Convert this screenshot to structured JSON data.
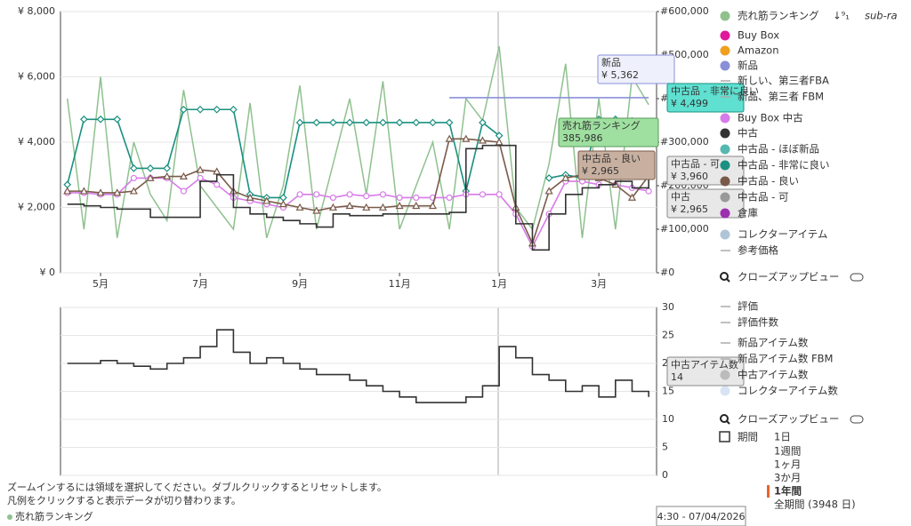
{
  "chart_data": [
    {
      "type": "line",
      "categories": [
        null,
        null,
        "5月",
        null,
        null,
        null,
        null,
        null,
        "7月",
        null,
        null,
        null,
        null,
        null,
        "9月",
        null,
        null,
        null,
        null,
        null,
        "11月",
        null,
        null,
        null,
        null,
        null,
        "1月",
        null,
        null,
        null,
        null,
        null,
        "3月",
        null,
        null,
        null
      ],
      "ylim": [
        0,
        8000
      ],
      "yticks": [
        {
          "value": 0,
          "label": "¥ 0"
        },
        {
          "value": 2000,
          "label": "¥ 2,000"
        },
        {
          "value": 4000,
          "label": "¥ 4,000"
        },
        {
          "value": 6000,
          "label": "¥ 6,000"
        },
        {
          "value": 8000,
          "label": "¥ 8,000"
        }
      ],
      "y2lim": [
        0,
        600000
      ],
      "y2ticks": [
        {
          "value": 0,
          "label": "#0"
        },
        {
          "value": 100000,
          "label": "#100,000"
        },
        {
          "value": 200000,
          "label": "#200,000"
        },
        {
          "value": 300000,
          "label": "#300,000"
        },
        {
          "value": 400000,
          "label": "#400,000"
        },
        {
          "value": 500000,
          "label": "#500,000"
        },
        {
          "value": 600000,
          "label": "#600,000"
        }
      ],
      "grid": true,
      "series": [
        {
          "color": "#8fc18f",
          "axis": "y2",
          "values": [
            400000,
            100000,
            450000,
            80000,
            300000,
            180000,
            120000,
            420000,
            200000,
            150000,
            100000,
            390000,
            80000,
            200000,
            430000,
            100000,
            250000,
            400000,
            180000,
            440000,
            100000,
            200000,
            300000,
            100000,
            400000,
            350000,
            520000,
            150000,
            100000,
            250000,
            480000,
            80000,
            400000,
            100000,
            450000,
            385986
          ]
        },
        {
          "color": "#8a8fd8",
          "values": [
            null,
            null,
            null,
            null,
            null,
            null,
            null,
            null,
            null,
            null,
            null,
            null,
            null,
            null,
            null,
            null,
            null,
            null,
            null,
            null,
            null,
            null,
            null,
            5362,
            5362,
            5362,
            5362,
            5362,
            5362,
            5362,
            5362,
            5362,
            5362,
            5362,
            5362,
            5362
          ]
        },
        {
          "color": "#1a9080",
          "marker": "diamond",
          "values": [
            2700,
            4700,
            4700,
            4700,
            3200,
            3200,
            3200,
            5000,
            5000,
            5000,
            5000,
            2400,
            2300,
            2300,
            4600,
            4600,
            4600,
            4600,
            4600,
            4600,
            4600,
            4600,
            4600,
            4600,
            2500,
            4600,
            4200,
            null,
            null,
            2900,
            3000,
            2900,
            4700,
            4700,
            4650,
            4499
          ]
        },
        {
          "color": "#d77be8",
          "marker": "circle",
          "values": [
            2450,
            2450,
            2400,
            2400,
            2900,
            2900,
            2900,
            2500,
            2900,
            2700,
            2300,
            2200,
            2100,
            2000,
            2400,
            2400,
            2300,
            2400,
            2350,
            2400,
            2300,
            2300,
            2300,
            2300,
            2400,
            2400,
            2400,
            1800,
            800,
            1800,
            2800,
            2800,
            2700,
            2700,
            2600,
            2500
          ]
        },
        {
          "color": "#7a5a4a",
          "marker": "triangle",
          "values": [
            2500,
            2500,
            2450,
            2450,
            2500,
            2900,
            2950,
            2950,
            3150,
            3100,
            2500,
            2300,
            2200,
            2100,
            2000,
            1900,
            2000,
            2050,
            2000,
            2000,
            2050,
            2050,
            2050,
            4100,
            4100,
            4050,
            4000,
            2000,
            900,
            2500,
            2900,
            3000,
            2900,
            2700,
            2300,
            2965
          ]
        },
        {
          "color": "#333333",
          "step": true,
          "values": [
            2100,
            2050,
            2000,
            1950,
            1950,
            1700,
            1700,
            1700,
            2800,
            3000,
            2000,
            1800,
            1700,
            1600,
            1500,
            1400,
            1800,
            1750,
            1750,
            1800,
            1800,
            1800,
            1800,
            1850,
            3800,
            3900,
            3900,
            1500,
            700,
            1800,
            2400,
            2600,
            2700,
            2800,
            2600,
            2965
          ]
        }
      ]
    },
    {
      "type": "line",
      "ylim": [
        0,
        30
      ],
      "yticks": [
        0,
        5,
        10,
        15,
        20,
        25,
        30
      ],
      "grid": true,
      "series": [
        {
          "color": "#333333",
          "step": true,
          "values": [
            20,
            20,
            20.5,
            20,
            19.5,
            19,
            20,
            21,
            23,
            26,
            22,
            20,
            21,
            20,
            19,
            18,
            18,
            17,
            16,
            15,
            14,
            13,
            13,
            13,
            14,
            16,
            23,
            21,
            18,
            17,
            15,
            16,
            14,
            17,
            15,
            14
          ]
        }
      ]
    }
  ],
  "legend": {
    "sort": "↓⁹₁",
    "sub": "sub-ra",
    "items": [
      {
        "label": "売れ筋ランキング",
        "color": "#8fc18f",
        "style": "dot"
      },
      {
        "label": "Buy Box",
        "color": "#e0199a",
        "style": "dot"
      },
      {
        "label": "Amazon",
        "color": "#f0a020",
        "style": "dot"
      },
      {
        "label": "新品",
        "color": "#8a8fd8",
        "style": "dot"
      },
      {
        "label": "新しい、第三者FBA",
        "color": "#aaaaaa",
        "style": "line"
      },
      {
        "label": "新品、第三者 FBM",
        "color": "#aaaaaa",
        "style": "line"
      },
      {
        "label": "Buy Box 中古",
        "color": "#d77be8",
        "style": "dot"
      },
      {
        "label": "中古",
        "color": "#333333",
        "style": "dot"
      },
      {
        "label": "中古品 - ほぼ新品",
        "color": "#55b8b0",
        "style": "dot"
      },
      {
        "label": "中古品 - 非常に良い",
        "color": "#1a9080",
        "style": "dot"
      },
      {
        "label": "中古品 - 良い",
        "color": "#7a5a4a",
        "style": "dot"
      },
      {
        "label": "中古品 - 可",
        "color": "#999999",
        "style": "dot"
      },
      {
        "label": "倉庫",
        "color": "#9b2fb0",
        "style": "dot"
      },
      {
        "label": "コレクターアイテム",
        "color": "#b0c4d8",
        "style": "dot"
      },
      {
        "label": "参考価格",
        "color": "#aaaaaa",
        "style": "line"
      }
    ]
  },
  "closeup": "クローズアップビュー",
  "legend2": [
    {
      "label": "評価",
      "color": "#aaaaaa",
      "style": "line"
    },
    {
      "label": "評価件数",
      "color": "#aaaaaa",
      "style": "line"
    },
    {
      "label": "新品アイテム数",
      "color": "#aaaaaa",
      "style": "line"
    },
    {
      "label": "新品アイテム数 FBM",
      "color": "#aaaaaa",
      "style": "line"
    },
    {
      "label": "中古アイテム数",
      "color": "#bbbbbb",
      "style": "dot"
    },
    {
      "label": "コレクターアイテム数",
      "color": "#d8e4f4",
      "style": "dot"
    }
  ],
  "closeup2": "クローズアップビュー",
  "period": {
    "label": "期間",
    "options": [
      "1日",
      "1週間",
      "1ヶ月",
      "3か月",
      "1年間",
      "全期間 (3948 日)"
    ]
  },
  "tooltips": [
    {
      "title": "新品",
      "value": "¥ 5,362"
    },
    {
      "title": "中古品 - 非常に良い",
      "value": "¥ 4,499"
    },
    {
      "title": "売れ筋ランキング",
      "value": "385,986"
    },
    {
      "title": "中古品 - 良い",
      "value": "¥ 2,965"
    },
    {
      "title": "中古品 - 可",
      "value": "¥ 3,960"
    },
    {
      "title": "中古",
      "value": "¥ 2,965"
    },
    {
      "title": "中古アイテム数",
      "value": "14"
    }
  ],
  "hints": [
    "ズームインするには領域を選択してください。ダブルクリックするとリセットします。",
    "凡例をクリックすると表示データが切り替わります。"
  ],
  "footer_legend": "売れ筋ランキング",
  "crosshair_date": "4:30 - 07/04/2026"
}
